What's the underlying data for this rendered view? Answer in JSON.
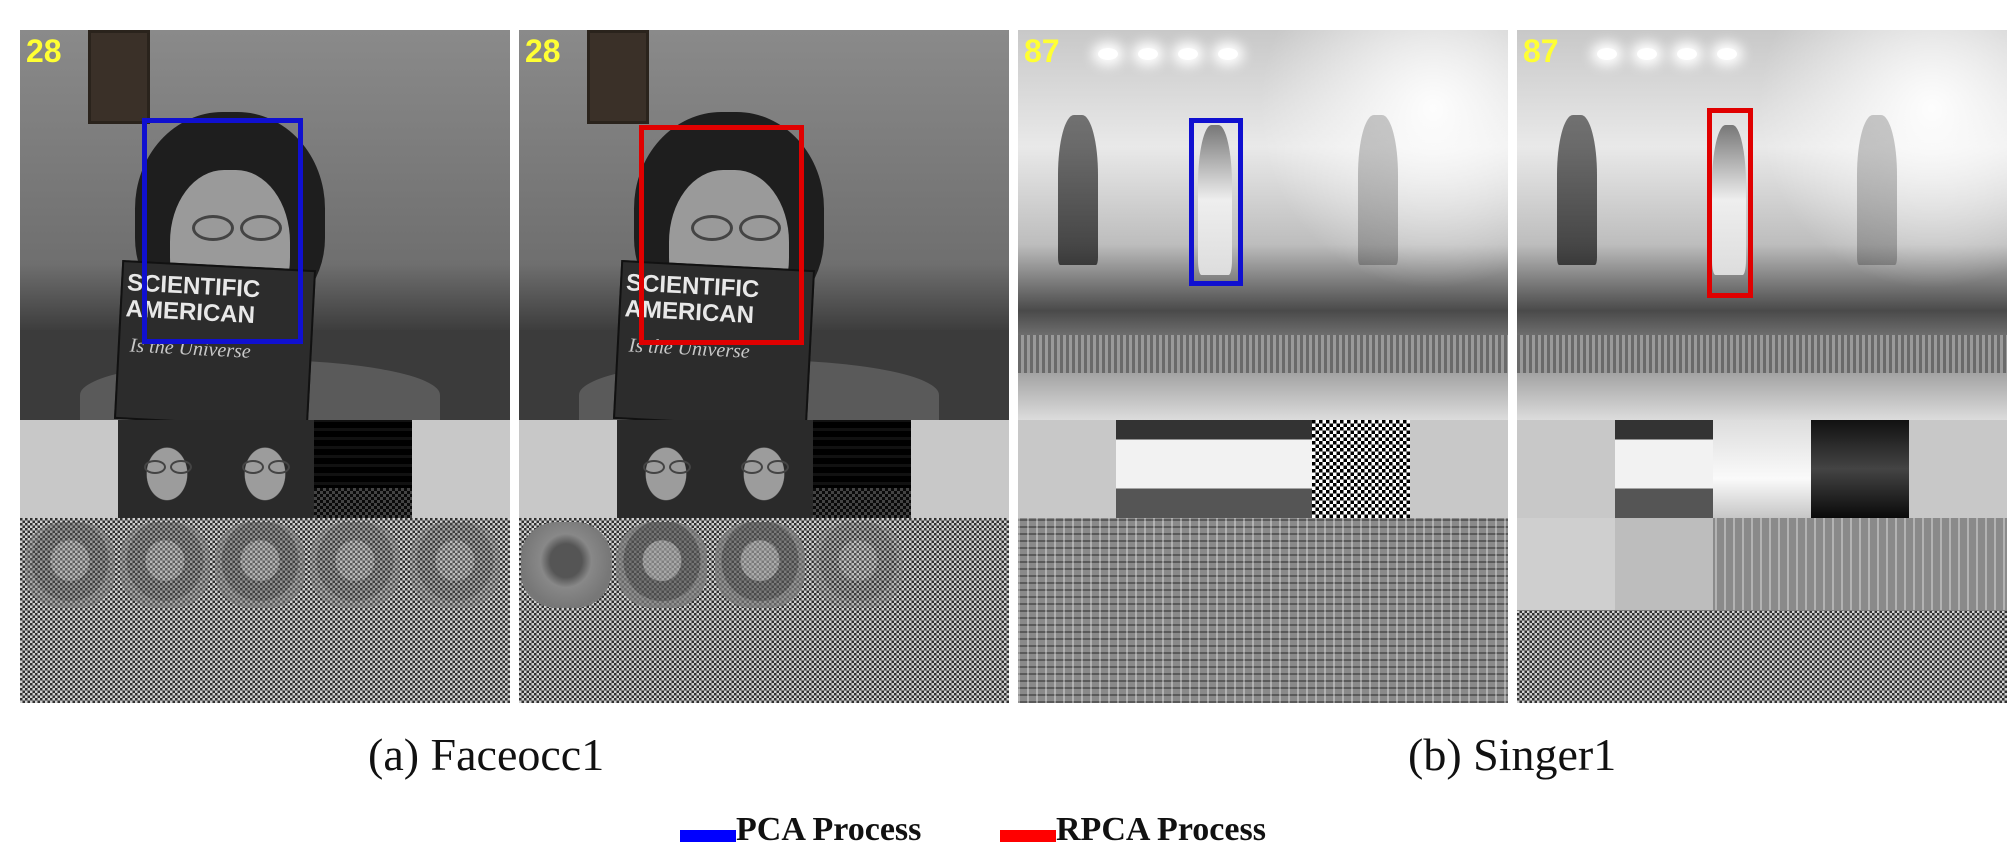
{
  "panels": [
    {
      "frame_number": "28",
      "tracker": "PCA"
    },
    {
      "frame_number": "28",
      "tracker": "RPCA"
    },
    {
      "frame_number": "87",
      "tracker": "PCA"
    },
    {
      "frame_number": "87",
      "tracker": "RPCA"
    }
  ],
  "magazine": {
    "title": "SCIENTIFIC AMERICAN",
    "subtitle": "Is the Universe"
  },
  "captions": {
    "a": "(a) Faceocc1",
    "b": "(b) Singer1"
  },
  "legend": [
    {
      "label": "PCA Process",
      "color": "#0000ff"
    },
    {
      "label": "RPCA Process",
      "color": "#ff0000"
    }
  ],
  "colors": {
    "pca_box": "#1010d0",
    "rpca_box": "#e00000",
    "frame_number": "#ffff33"
  }
}
